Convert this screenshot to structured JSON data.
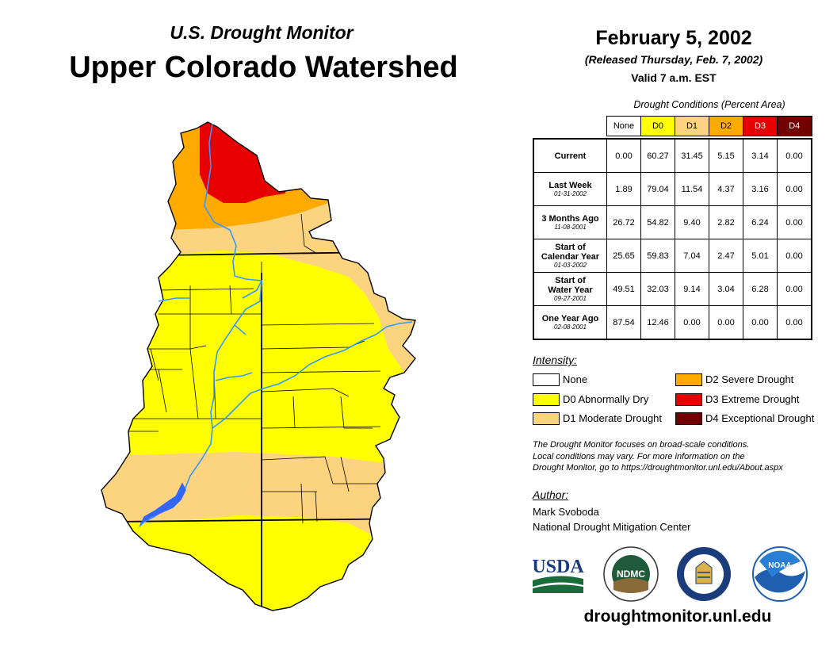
{
  "header": {
    "subtitle": "U.S. Drought Monitor",
    "title": "Upper Colorado Watershed",
    "date": "February 5, 2002",
    "released": "(Released Thursday, Feb. 7, 2002)",
    "valid": "Valid 7 a.m. EST"
  },
  "table": {
    "caption": "Drought Conditions (Percent Area)",
    "columns": [
      "None",
      "D0",
      "D1",
      "D2",
      "D3",
      "D4"
    ],
    "column_colors": [
      "#ffffff",
      "#ffff00",
      "#fcd37f",
      "#ffaa00",
      "#e60000",
      "#730000"
    ],
    "column_text_colors": [
      "#000000",
      "#000000",
      "#000000",
      "#000000",
      "#ffffff",
      "#ffffff"
    ],
    "rows": [
      {
        "label": "Current",
        "label2": "",
        "date": "",
        "values": [
          "0.00",
          "60.27",
          "31.45",
          "5.15",
          "3.14",
          "0.00"
        ]
      },
      {
        "label": "Last Week",
        "label2": "",
        "date": "01-31-2002",
        "values": [
          "1.89",
          "79.04",
          "11.54",
          "4.37",
          "3.16",
          "0.00"
        ]
      },
      {
        "label": "3 Months Ago",
        "label2": "",
        "date": "11-08-2001",
        "values": [
          "26.72",
          "54.82",
          "9.40",
          "2.82",
          "6.24",
          "0.00"
        ]
      },
      {
        "label": "Start of",
        "label2": "Calendar Year",
        "date": "01-03-2002",
        "values": [
          "25.65",
          "59.83",
          "7.04",
          "2.47",
          "5.01",
          "0.00"
        ]
      },
      {
        "label": "Start of",
        "label2": "Water Year",
        "date": "09-27-2001",
        "values": [
          "49.51",
          "32.03",
          "9.14",
          "3.04",
          "6.28",
          "0.00"
        ]
      },
      {
        "label": "One Year Ago",
        "label2": "",
        "date": "02-08-2001",
        "values": [
          "87.54",
          "12.46",
          "0.00",
          "0.00",
          "0.00",
          "0.00"
        ]
      }
    ]
  },
  "legend": {
    "title": "Intensity:",
    "items": [
      {
        "label": "None",
        "color": "#ffffff"
      },
      {
        "label": "D0 Abnormally Dry",
        "color": "#ffff00"
      },
      {
        "label": "D1 Moderate Drought",
        "color": "#fcd37f"
      },
      {
        "label": "D2 Severe Drought",
        "color": "#ffaa00"
      },
      {
        "label": "D3 Extreme Drought",
        "color": "#e60000"
      },
      {
        "label": "D4 Exceptional Drought",
        "color": "#730000"
      }
    ]
  },
  "note": {
    "line1": "The Drought Monitor focuses on broad-scale conditions.",
    "line2": "Local conditions may vary. For more information on the",
    "line3": "Drought Monitor, go to https://droughtmonitor.unl.edu/About.aspx"
  },
  "author": {
    "label": "Author:",
    "name": "Mark Svoboda",
    "org": "National Drought Mitigation Center"
  },
  "logos": {
    "usda": "USDA",
    "ndmc": "NDMC",
    "noaa": "NOAA"
  },
  "website": "droughtmonitor.unl.edu",
  "map_colors": {
    "river": "#3399ff",
    "lake": "#3366ff",
    "boundary": "#000000"
  }
}
